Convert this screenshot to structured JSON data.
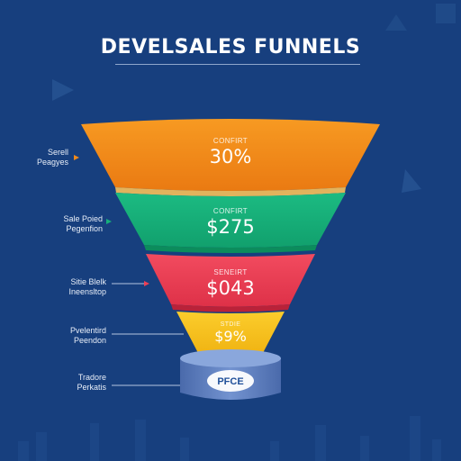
{
  "title": "DEVELSALES FUNNELS",
  "stages": [
    {
      "caption": "CONFIRT",
      "value": "30%",
      "label_line1": "Serell",
      "label_line2": "Peagyes"
    },
    {
      "caption": "CONFIRT",
      "value": "$275",
      "label_line1": "Sale Poied",
      "label_line2": "Pegenfion"
    },
    {
      "caption": "SENEIRT",
      "value": "$043",
      "label_line1": "Sitie Blelk",
      "label_line2": "Ineensltop"
    },
    {
      "caption": "STDIE",
      "value": "$9%",
      "label_line1": "Pvelentird",
      "label_line2": "Peendon"
    }
  ],
  "base": {
    "label": "PFCE",
    "side_line1": "Tradore",
    "side_line2": "Perkatis"
  },
  "colors": {
    "background": "#173f7e",
    "stage1": "#f28a1a",
    "stage2": "#17b07a",
    "stage3": "#ec3f55",
    "stage4": "#f7c21f",
    "base": "#5e7fbf"
  }
}
